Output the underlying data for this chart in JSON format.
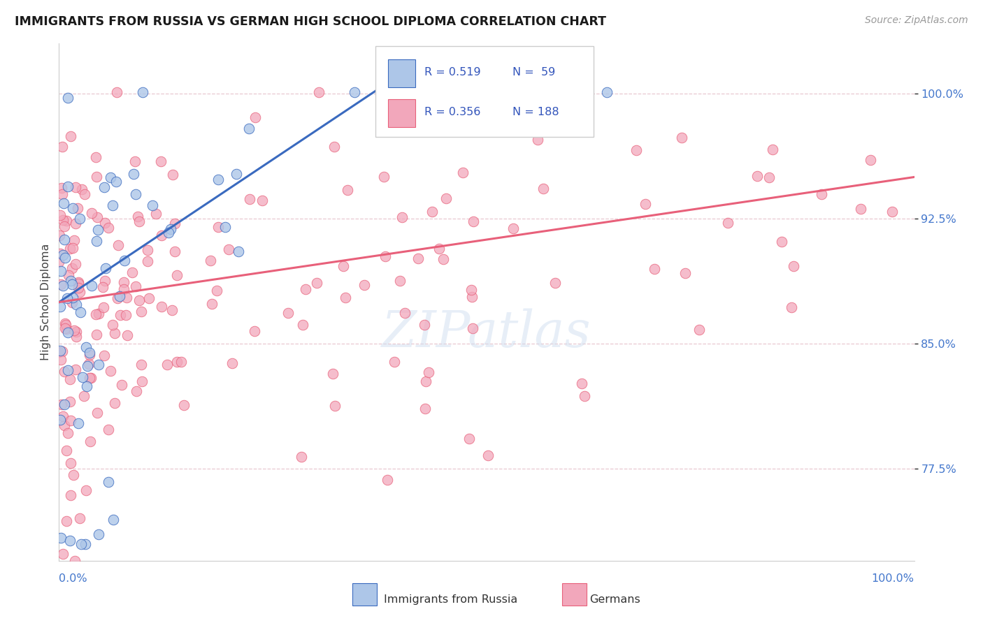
{
  "title": "IMMIGRANTS FROM RUSSIA VS GERMAN HIGH SCHOOL DIPLOMA CORRELATION CHART",
  "source": "Source: ZipAtlas.com",
  "ylabel": "High School Diploma",
  "legend_label1": "Immigrants from Russia",
  "legend_label2": "Germans",
  "legend_r1": "R = 0.519",
  "legend_n1": "N =  59",
  "legend_r2": "R = 0.356",
  "legend_n2": "N = 188",
  "ytick_labels": [
    "77.5%",
    "85.0%",
    "92.5%",
    "100.0%"
  ],
  "ytick_values": [
    0.775,
    0.85,
    0.925,
    1.0
  ],
  "color_blue": "#adc6e8",
  "color_pink": "#f2a7bb",
  "line_blue": "#3a6abf",
  "line_pink": "#e8607a",
  "background": "#ffffff",
  "grid_color": "#e8c8d0",
  "ymin": 0.72,
  "ymax": 1.03,
  "xmin": 0.0,
  "xmax": 1.0
}
